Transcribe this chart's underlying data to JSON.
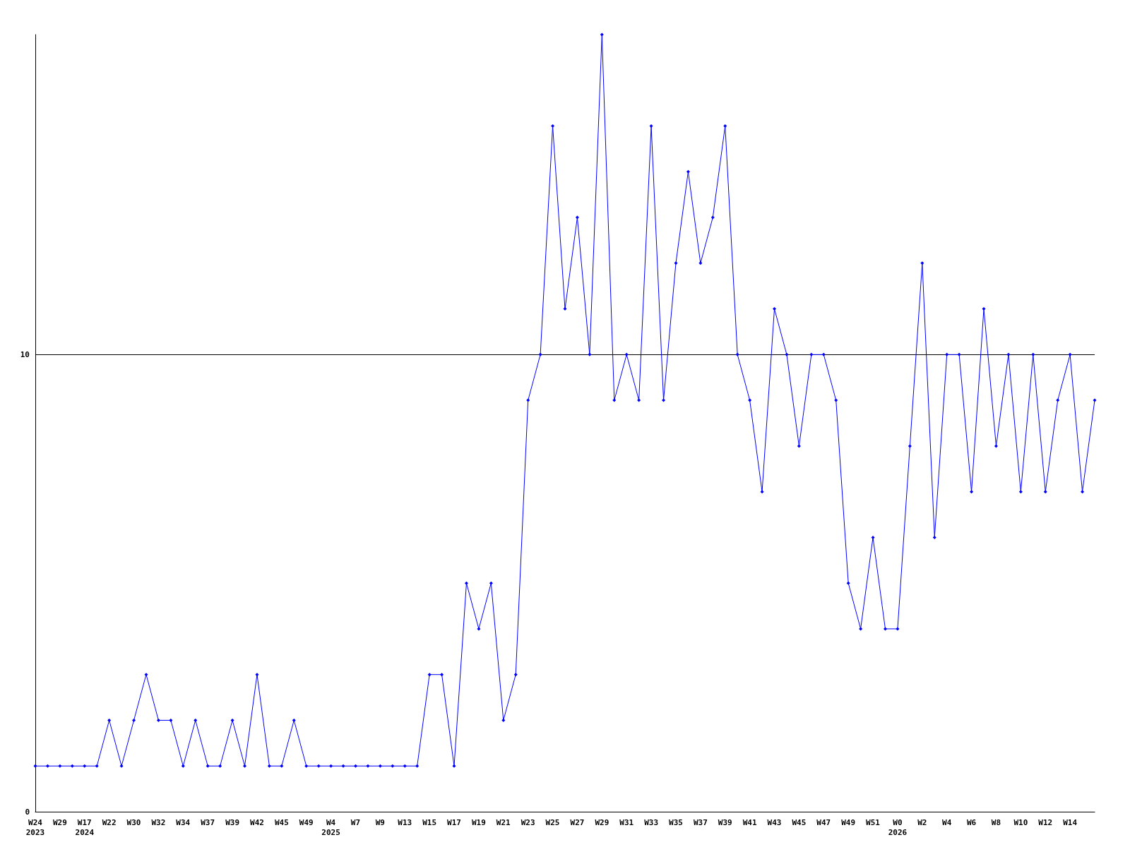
{
  "chart_data": {
    "type": "line",
    "categories": [
      "W24\n2023",
      null,
      "W29",
      null,
      "W17\n2024",
      null,
      "W22",
      null,
      "W30",
      null,
      "W32",
      null,
      "W34",
      null,
      "W37",
      null,
      "W39",
      null,
      "W42",
      null,
      "W45",
      null,
      "W49",
      null,
      "W4\n2025",
      null,
      "W7",
      null,
      "W9",
      null,
      "W13",
      null,
      "W15",
      null,
      "W17",
      null,
      "W19",
      null,
      "W21",
      null,
      "W23",
      null,
      "W25",
      null,
      "W27",
      null,
      "W29",
      null,
      "W31",
      null,
      "W33",
      null,
      "W35",
      null,
      "W37",
      null,
      "W39",
      null,
      "W41",
      null,
      "W43",
      null,
      "W45",
      null,
      "W47",
      null,
      "W49",
      null,
      "W51",
      null,
      "W0\n2026",
      null,
      "W2",
      null,
      "W4",
      null,
      "W6",
      null,
      "W8",
      null,
      "W10",
      null,
      "W12",
      null,
      "W14",
      null,
      null
    ],
    "values": [
      1,
      1,
      1,
      1,
      1,
      1,
      2,
      1,
      2,
      3,
      2,
      2,
      1,
      2,
      1,
      1,
      2,
      1,
      3,
      1,
      1,
      2,
      1,
      1,
      1,
      1,
      1,
      1,
      1,
      1,
      1,
      1,
      3,
      3,
      1,
      5,
      4,
      5,
      2,
      3,
      9,
      10,
      15,
      11,
      13,
      10,
      17,
      9,
      10,
      9,
      15,
      9,
      12,
      14,
      12,
      13,
      15,
      10,
      9,
      7,
      11,
      10,
      8,
      10,
      10,
      9,
      5,
      4,
      6,
      4,
      4,
      8,
      12,
      6,
      10,
      10,
      7,
      11,
      8,
      10,
      7,
      10,
      7,
      9,
      10,
      7,
      9
    ],
    "color": "#0000ff",
    "marker": "diamond",
    "ylim": [
      0,
      17
    ],
    "yticks": [
      0,
      10
    ],
    "grid": "y"
  }
}
